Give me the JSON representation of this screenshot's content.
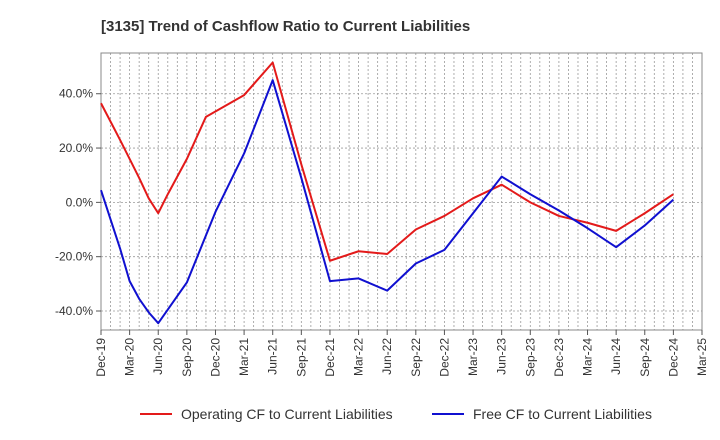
{
  "chart_data": {
    "type": "line",
    "title": "[3135]  Trend of Cashflow Ratio to Current Liabilities",
    "xlabel": "",
    "ylabel": "",
    "x_ticks": [
      "Dec-19",
      "Mar-20",
      "Jun-20",
      "Sep-20",
      "Dec-20",
      "Mar-21",
      "Jun-21",
      "Sep-21",
      "Dec-21",
      "Mar-22",
      "Jun-22",
      "Sep-22",
      "Dec-22",
      "Mar-23",
      "Jun-23",
      "Sep-23",
      "Dec-23",
      "Mar-24",
      "Jun-24",
      "Sep-24",
      "Dec-24",
      "Mar-25"
    ],
    "y_ticks": [
      {
        "value": 40,
        "label": "40.0%"
      },
      {
        "value": 20,
        "label": "20.0%"
      },
      {
        "value": 0,
        "label": "0.0%"
      },
      {
        "value": -20,
        "label": "-20.0%"
      },
      {
        "value": -40,
        "label": "-40.0%"
      }
    ],
    "ylim": [
      -47,
      55
    ],
    "grid": true,
    "legend_position": "bottom",
    "series": [
      {
        "name": "Operating CF to Current Liabilities",
        "color": "#e31a1a",
        "points": [
          [
            "Dec-19",
            36.5
          ],
          [
            "Feb-20",
            23
          ],
          [
            "Apr-20",
            9
          ],
          [
            "May-20",
            1.5
          ],
          [
            "Jun-20",
            -4
          ],
          [
            "Jul-20",
            3
          ],
          [
            "Sep-20",
            16
          ],
          [
            "Nov-20",
            31.5
          ],
          [
            "Mar-21",
            39.5
          ],
          [
            "Jun-21",
            51.5
          ],
          [
            "Sep-21",
            14
          ],
          [
            "Dec-21",
            -21.5
          ],
          [
            "Mar-22",
            -18
          ],
          [
            "Jun-22",
            -19
          ],
          [
            "Sep-22",
            -10
          ],
          [
            "Dec-22",
            -5
          ],
          [
            "Mar-23",
            1.5
          ],
          [
            "Jun-23",
            6.5
          ],
          [
            "Sep-23",
            0
          ],
          [
            "Dec-23",
            -5
          ],
          [
            "Mar-24",
            -7.5
          ],
          [
            "Jun-24",
            -10.5
          ],
          [
            "Sep-24",
            -4
          ],
          [
            "Dec-24",
            3
          ]
        ]
      },
      {
        "name": "Free CF to Current Liabilities",
        "color": "#1010d0",
        "points": [
          [
            "Dec-19",
            4.5
          ],
          [
            "Feb-20",
            -17
          ],
          [
            "Mar-20",
            -29
          ],
          [
            "Apr-20",
            -35.5
          ],
          [
            "May-20",
            -40.5
          ],
          [
            "Jun-20",
            -44.5
          ],
          [
            "Sep-20",
            -29.5
          ],
          [
            "Dec-20",
            -3.5
          ],
          [
            "Mar-21",
            18
          ],
          [
            "Jun-21",
            45
          ],
          [
            "Sep-21",
            9
          ],
          [
            "Dec-21",
            -29
          ],
          [
            "Mar-22",
            -28
          ],
          [
            "Jun-22",
            -32.5
          ],
          [
            "Sep-22",
            -22.5
          ],
          [
            "Dec-22",
            -17.5
          ],
          [
            "Mar-23",
            -4
          ],
          [
            "Jun-23",
            9.5
          ],
          [
            "Sep-23",
            3
          ],
          [
            "Dec-23",
            -3
          ],
          [
            "Mar-24",
            -9.5
          ],
          [
            "Jun-24",
            -16.5
          ],
          [
            "Sep-24",
            -8.5
          ],
          [
            "Dec-24",
            1
          ]
        ]
      }
    ]
  }
}
